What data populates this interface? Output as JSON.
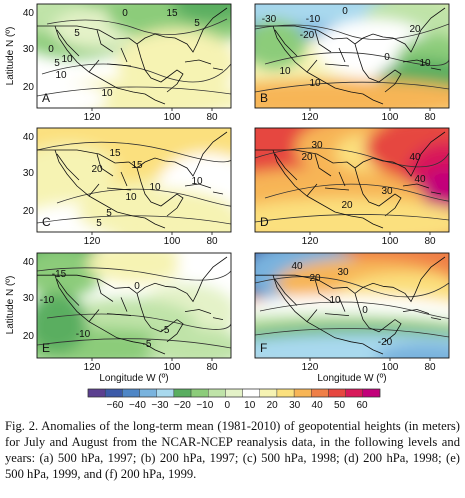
{
  "chart_data": {
    "type": "heatmap",
    "color_scale": {
      "levels": [
        -60,
        -40,
        -30,
        -20,
        -10,
        0,
        10,
        20,
        30,
        40,
        50,
        60
      ],
      "tick_labels": [
        "−60",
        "−40",
        "−30",
        "−20",
        "−10",
        "0",
        "10",
        "20",
        "30",
        "40",
        "50",
        "60"
      ],
      "colors": [
        "#5b3f8f",
        "#3c5aa8",
        "#4e86c6",
        "#79b3de",
        "#a9d9ee",
        "#5aae61",
        "#8ccc7a",
        "#bfe3a8",
        "#e4f2c8",
        "#ffffff",
        "#f6f3b3",
        "#fbe07e",
        "#f7b556",
        "#ef7f47",
        "#e6473f",
        "#d8195a",
        "#c2007a"
      ]
    },
    "x_axis": {
      "label": "Longitude W (º)",
      "ticks": [
        120,
        100,
        80
      ],
      "range": [
        130,
        72
      ]
    },
    "y_axis": {
      "label": "Latitude N (º)",
      "ticks": [
        10,
        20,
        30,
        40
      ],
      "range": [
        40,
        8
      ]
    },
    "panels": [
      {
        "letter": "A",
        "contour_labels": [
          "5",
          "0",
          "10",
          "15",
          "0",
          "5",
          "10",
          "5",
          "10"
        ]
      },
      {
        "letter": "B",
        "contour_labels": [
          "-30",
          "-20",
          "-10",
          "0",
          "10",
          "20",
          "10",
          "10",
          "0"
        ]
      },
      {
        "letter": "C",
        "contour_labels": [
          "20",
          "15",
          "10",
          "10",
          "5",
          "5",
          "10",
          "15"
        ]
      },
      {
        "letter": "D",
        "contour_labels": [
          "20",
          "30",
          "40",
          "30",
          "20",
          "40"
        ]
      },
      {
        "letter": "E",
        "contour_labels": [
          "-15",
          "0",
          "-10",
          "-5",
          "-5",
          "-10"
        ]
      },
      {
        "letter": "F",
        "contour_labels": [
          "40",
          "30",
          "20",
          "10",
          "0",
          "-20"
        ]
      }
    ]
  },
  "caption": "Fig. 2. Anomalies of the long-term mean (1981-2010) of geopotential heights (in meters) for July and August from the NCAR-NCEP reanalysis data, in the following levels and years: (a) 500 hPa, 1997; (b) 200 hPa, 1997; (c) 500 hPa, 1998; (d) 200 hPa, 1998; (e) 500 hPa, 1999, and (f) 200 hPa, 1999."
}
